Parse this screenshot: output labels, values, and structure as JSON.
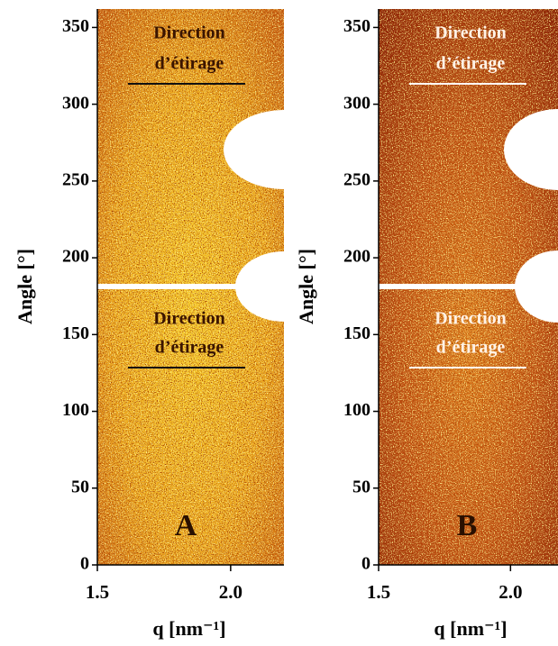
{
  "chart_data": [
    {
      "type": "heatmap",
      "xlabel": "q [nm⁻¹]",
      "ylabel": "Angle [°]",
      "xlim": [
        1.5,
        2.2
      ],
      "xticks": [
        1.5,
        {
          "value": 2.0,
          "label": "2.0"
        }
      ],
      "ylim": [
        0,
        362
      ],
      "yticks": [
        0,
        50,
        100,
        150,
        200,
        250,
        300,
        350
      ],
      "annotations": [
        "Direction",
        "d’étirage",
        "Direction",
        "d’étirage"
      ],
      "panel_label": "A"
    },
    {
      "type": "heatmap",
      "xlabel": "q [nm⁻¹]",
      "ylabel": "Angle [°]",
      "xlim": [
        1.5,
        2.18
      ],
      "xticks": [
        1.5,
        {
          "value": 2.0,
          "label": "2.0"
        }
      ],
      "ylim": [
        0,
        362
      ],
      "yticks": [
        0,
        50,
        100,
        150,
        200,
        250,
        300,
        350
      ],
      "annotations": [
        "Direction",
        "d’étirage",
        "Direction",
        "d’étirage"
      ],
      "panel_label": "B"
    }
  ]
}
